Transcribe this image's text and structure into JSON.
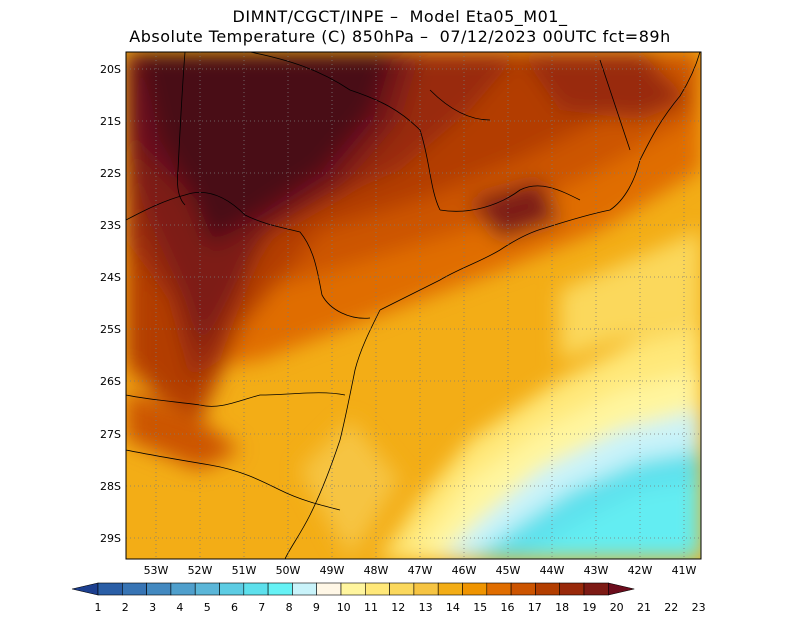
{
  "title": {
    "line1": "DIMNT/CGCT/INPE –  Model Eta05_M01_",
    "line2": "Absolute Temperature (C) 850hPa –  07/12/2023 00UTC fct=89h"
  },
  "axes": {
    "lat_labels": [
      "20S",
      "21S",
      "22S",
      "23S",
      "24S",
      "25S",
      "26S",
      "27S",
      "28S",
      "29S"
    ],
    "lon_labels": [
      "53W",
      "52W",
      "51W",
      "50W",
      "49W",
      "48W",
      "47W",
      "46W",
      "45W",
      "44W",
      "43W",
      "42W",
      "41W"
    ]
  },
  "colorbar": {
    "labels": [
      "1",
      "2",
      "3",
      "4",
      "5",
      "6",
      "7",
      "8",
      "9",
      "10",
      "11",
      "12",
      "13",
      "14",
      "15",
      "16",
      "17",
      "18",
      "19",
      "20",
      "21",
      "22",
      "23"
    ],
    "colors": [
      "#1c3f8f",
      "#2a5ea6",
      "#3774b4",
      "#4389c0",
      "#4f9fcc",
      "#5bb6d8",
      "#5ccce3",
      "#5de0ec",
      "#66f2f5",
      "#c9f3fa",
      "#fff7e6",
      "#fff59e",
      "#ffe879",
      "#fbd85c",
      "#f6c442",
      "#f3ad16",
      "#ef9400",
      "#e06d00",
      "#cc5400",
      "#b33e00",
      "#99290a",
      "#7d1a14",
      "#6b0c1c"
    ]
  }
}
